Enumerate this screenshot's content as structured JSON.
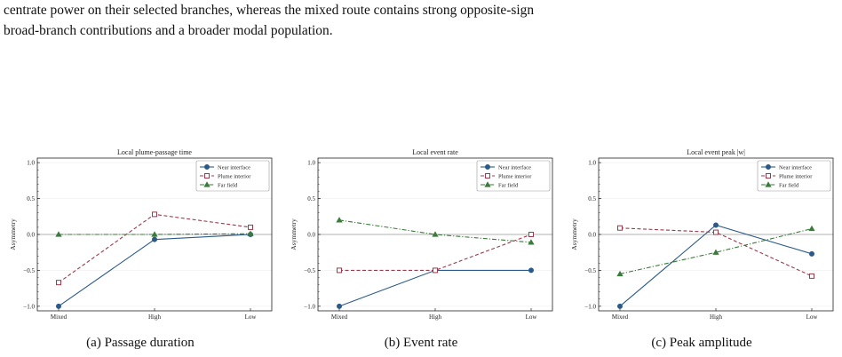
{
  "paragraph": {
    "line1": "centrate power on their selected branches, whereas the mixed route contains strong opposite-sign",
    "line2": "broad-branch contributions and a broader modal population."
  },
  "chart_data": [
    {
      "type": "line",
      "title": "Local plume-passage time",
      "caption": "(a) Passage duration",
      "ylabel": "Asymmetry",
      "categories": [
        "Mixed",
        "High",
        "Low"
      ],
      "ylim": [
        -1.0,
        1.0
      ],
      "yticks": [
        "-1.0",
        "-0.5",
        "0.0",
        "0.5",
        "1.0"
      ],
      "legend_position": "top-right",
      "series": [
        {
          "name": "Near interface",
          "values": [
            -1.0,
            -0.07,
            0.0
          ],
          "color": "#2b5a8a",
          "marker": "circle",
          "dash": "solid"
        },
        {
          "name": "Plume interior",
          "values": [
            -0.67,
            0.28,
            0.1
          ],
          "color": "#9b3a4a",
          "marker": "square-open",
          "dash": "dashed"
        },
        {
          "name": "Far field",
          "values": [
            0.0,
            0.0,
            0.01
          ],
          "color": "#3a7a3a",
          "marker": "triangle",
          "dash": "dashdot"
        }
      ]
    },
    {
      "type": "line",
      "title": "Local event rate",
      "caption": "(b) Event rate",
      "ylabel": "Asymmetry",
      "categories": [
        "Mixed",
        "High",
        "Low"
      ],
      "ylim": [
        -1.0,
        1.0
      ],
      "yticks": [
        "-1.0",
        "-0.5",
        "0.0",
        "0.5",
        "1.0"
      ],
      "legend_position": "top-right",
      "series": [
        {
          "name": "Near interface",
          "values": [
            -1.0,
            -0.5,
            -0.5
          ],
          "color": "#2b5a8a",
          "marker": "circle",
          "dash": "solid"
        },
        {
          "name": "Plume interior",
          "values": [
            -0.5,
            -0.5,
            0.0
          ],
          "color": "#9b3a4a",
          "marker": "square-open",
          "dash": "dashed"
        },
        {
          "name": "Far field",
          "values": [
            0.2,
            0.0,
            -0.11
          ],
          "color": "#3a7a3a",
          "marker": "triangle",
          "dash": "dashdot"
        }
      ]
    },
    {
      "type": "line",
      "title": "Local event peak |w|",
      "caption": "(c) Peak amplitude",
      "ylabel": "Asymmetry",
      "categories": [
        "Mixed",
        "High",
        "Low"
      ],
      "ylim": [
        -1.0,
        1.0
      ],
      "yticks": [
        "-1.0",
        "-0.5",
        "0.0",
        "0.5",
        "1.0"
      ],
      "legend_position": "top-right",
      "series": [
        {
          "name": "Near interface",
          "values": [
            -1.0,
            0.13,
            -0.27
          ],
          "color": "#2b5a8a",
          "marker": "circle",
          "dash": "solid"
        },
        {
          "name": "Plume interior",
          "values": [
            0.09,
            0.03,
            -0.58
          ],
          "color": "#9b3a4a",
          "marker": "square-open",
          "dash": "dashed"
        },
        {
          "name": "Far field",
          "values": [
            -0.55,
            -0.25,
            0.08
          ],
          "color": "#3a7a3a",
          "marker": "triangle",
          "dash": "dashdot"
        }
      ]
    }
  ]
}
